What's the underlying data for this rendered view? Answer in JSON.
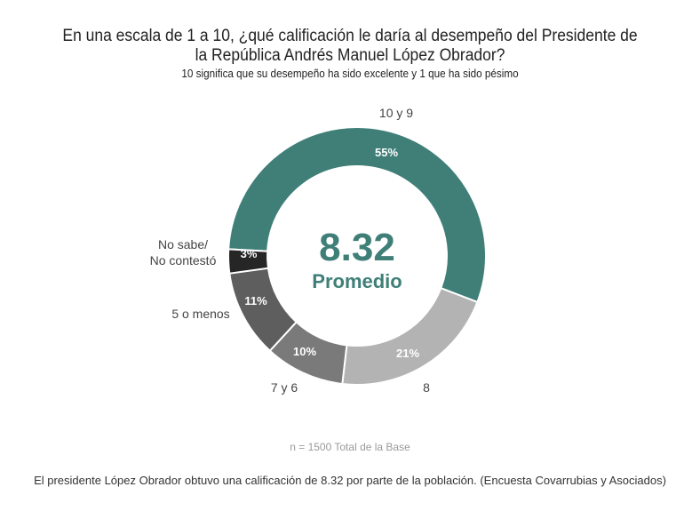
{
  "chart_data": {
    "type": "pie",
    "variant": "donut",
    "title": "En una escala de 1 a 10, ¿qué calificación le daría al desempeño del Presidente de la República Andrés Manuel López Obrador?",
    "title_line1": "En una escala de 1 a 10, ¿qué calificación le daría al desempeño del Presidente de",
    "title_line2": "la República Andrés Manuel López Obrador?",
    "subtitle": "10 significa que su desempeño ha sido excelente y 1 que ha sido pésimo",
    "center_value": "8.32",
    "center_label": "Promedio",
    "slices": [
      {
        "label": "10 y 9",
        "value": 55,
        "display": "55%",
        "color": "#3f7f78"
      },
      {
        "label": "8",
        "value": 21,
        "display": "21%",
        "color": "#b3b3b3"
      },
      {
        "label": "7 y 6",
        "value": 10,
        "display": "10%",
        "color": "#7a7a7a"
      },
      {
        "label": "5 o menos",
        "value": 11,
        "display": "11%",
        "color": "#5e5e5e"
      },
      {
        "label": "No sabe/ No contestó",
        "label_lines": [
          "No sabe/",
          "No contestó"
        ],
        "value": 3,
        "display": "3%",
        "color": "#262626"
      }
    ],
    "base_note": "n = 1500 Total de la Base",
    "legend": "none"
  },
  "caption": "El presidente López Obrador obtuvo una calificación de 8.32 por parte de la población. (Encuesta Covarrubias y Asociados)"
}
